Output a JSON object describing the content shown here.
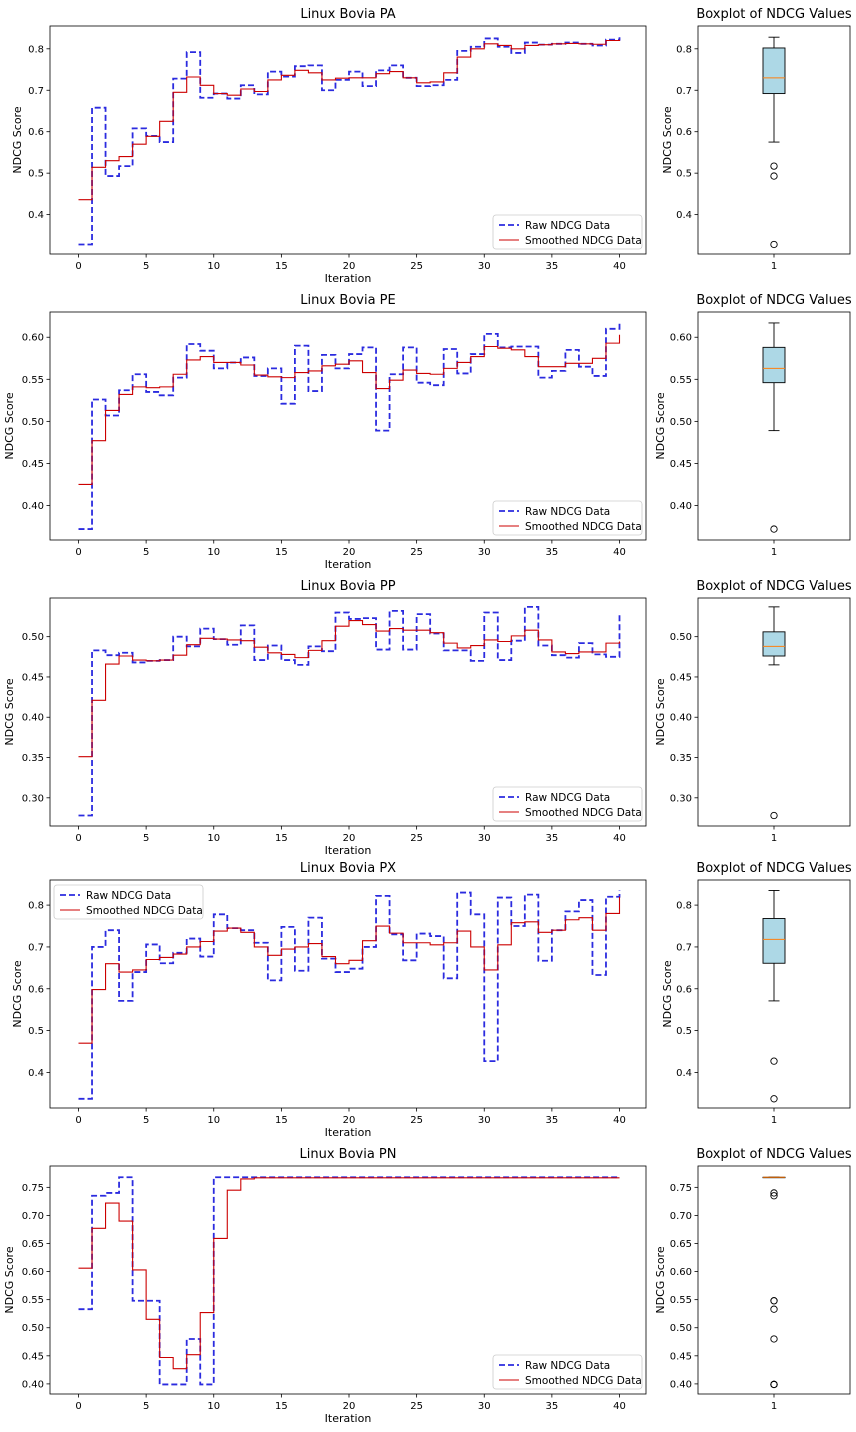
{
  "figure": {
    "legend_raw": "Raw NDCG Data",
    "legend_smooth": "Smoothed NDCG Data",
    "xlabel": "Iteration",
    "ylabel": "NDCG Score",
    "box_title": "Boxplot of NDCG Values",
    "box_xtick": "1"
  },
  "colors": {
    "raw": "#2b2bdf",
    "smooth": "#cc0000",
    "box_fill": "#add8e6",
    "median": "#ff7f0e"
  },
  "chart_data": [
    {
      "type": "line",
      "title": "Linux Bovia PA",
      "xlabel": "Iteration",
      "ylabel": "NDCG Score",
      "xlim": [
        0,
        40
      ],
      "ylim": [
        0.305,
        0.855
      ],
      "yticks": [
        0.4,
        0.5,
        0.6,
        0.7,
        0.8
      ],
      "legend": "lower right",
      "step": "post",
      "series": [
        {
          "name": "Raw NDCG Data",
          "style": "dashed",
          "values": [
            0.328,
            0.658,
            0.493,
            0.517,
            0.608,
            0.59,
            0.575,
            0.728,
            0.792,
            0.682,
            0.692,
            0.68,
            0.712,
            0.69,
            0.745,
            0.733,
            0.758,
            0.76,
            0.7,
            0.725,
            0.745,
            0.71,
            0.748,
            0.76,
            0.73,
            0.71,
            0.712,
            0.725,
            0.795,
            0.805,
            0.825,
            0.805,
            0.79,
            0.815,
            0.81,
            0.812,
            0.815,
            0.812,
            0.808,
            0.822,
            0.828
          ]
        },
        {
          "name": "Smoothed NDCG Data",
          "style": "solid",
          "values": [
            0.436,
            0.514,
            0.53,
            0.54,
            0.57,
            0.589,
            0.625,
            0.695,
            0.732,
            0.712,
            0.692,
            0.688,
            0.703,
            0.697,
            0.725,
            0.736,
            0.748,
            0.742,
            0.725,
            0.729,
            0.73,
            0.73,
            0.74,
            0.745,
            0.73,
            0.718,
            0.72,
            0.742,
            0.78,
            0.8,
            0.812,
            0.808,
            0.8,
            0.808,
            0.81,
            0.812,
            0.813,
            0.812,
            0.811,
            0.82,
            0.822
          ]
        }
      ],
      "box": {
        "min": 0.575,
        "q1": 0.692,
        "median": 0.73,
        "q3": 0.802,
        "max": 0.828,
        "outliers": [
          0.517,
          0.493,
          0.328
        ],
        "ylim": [
          0.305,
          0.855
        ],
        "yticks": [
          0.4,
          0.5,
          0.6,
          0.7,
          0.8
        ]
      }
    },
    {
      "type": "line",
      "title": "Linux Bovia PE",
      "xlabel": "Iteration",
      "ylabel": "NDCG Score",
      "xlim": [
        0,
        40
      ],
      "ylim": [
        0.359,
        0.63
      ],
      "yticks": [
        0.4,
        0.45,
        0.5,
        0.55,
        0.6
      ],
      "legend": "lower right",
      "step": "post",
      "series": [
        {
          "name": "Raw NDCG Data",
          "style": "dashed",
          "values": [
            0.372,
            0.526,
            0.507,
            0.537,
            0.556,
            0.535,
            0.531,
            0.552,
            0.592,
            0.584,
            0.563,
            0.57,
            0.576,
            0.554,
            0.563,
            0.521,
            0.59,
            0.536,
            0.579,
            0.563,
            0.58,
            0.588,
            0.489,
            0.556,
            0.588,
            0.546,
            0.543,
            0.586,
            0.557,
            0.58,
            0.604,
            0.588,
            0.589,
            0.589,
            0.552,
            0.56,
            0.585,
            0.565,
            0.554,
            0.61,
            0.617
          ]
        },
        {
          "name": "Smoothed NDCG Data",
          "style": "solid",
          "values": [
            0.425,
            0.477,
            0.513,
            0.532,
            0.541,
            0.54,
            0.541,
            0.556,
            0.573,
            0.577,
            0.57,
            0.57,
            0.567,
            0.555,
            0.553,
            0.552,
            0.558,
            0.56,
            0.566,
            0.568,
            0.572,
            0.558,
            0.539,
            0.549,
            0.561,
            0.557,
            0.556,
            0.563,
            0.57,
            0.577,
            0.589,
            0.587,
            0.585,
            0.577,
            0.565,
            0.565,
            0.569,
            0.569,
            0.575,
            0.593,
            0.603
          ]
        }
      ],
      "box": {
        "min": 0.489,
        "q1": 0.546,
        "median": 0.563,
        "q3": 0.588,
        "max": 0.617,
        "outliers": [
          0.372
        ],
        "ylim": [
          0.359,
          0.63
        ],
        "yticks": [
          0.4,
          0.45,
          0.5,
          0.55,
          0.6
        ]
      }
    },
    {
      "type": "line",
      "title": "Linux Bovia PP",
      "xlabel": "Iteration",
      "ylabel": "NDCG Score",
      "xlim": [
        0,
        40
      ],
      "ylim": [
        0.265,
        0.548
      ],
      "yticks": [
        0.3,
        0.35,
        0.4,
        0.45,
        0.5
      ],
      "legend": "lower right",
      "step": "post",
      "series": [
        {
          "name": "Raw NDCG Data",
          "style": "dashed",
          "values": [
            0.278,
            0.483,
            0.477,
            0.48,
            0.468,
            0.47,
            0.471,
            0.5,
            0.488,
            0.51,
            0.497,
            0.49,
            0.514,
            0.471,
            0.489,
            0.471,
            0.465,
            0.488,
            0.482,
            0.53,
            0.522,
            0.523,
            0.484,
            0.532,
            0.484,
            0.528,
            0.504,
            0.483,
            0.483,
            0.47,
            0.53,
            0.471,
            0.495,
            0.537,
            0.489,
            0.477,
            0.474,
            0.492,
            0.478,
            0.475,
            0.529
          ]
        },
        {
          "name": "Smoothed NDCG Data",
          "style": "solid",
          "values": [
            0.351,
            0.421,
            0.466,
            0.476,
            0.471,
            0.47,
            0.471,
            0.477,
            0.49,
            0.498,
            0.497,
            0.496,
            0.495,
            0.487,
            0.48,
            0.478,
            0.474,
            0.483,
            0.495,
            0.513,
            0.52,
            0.515,
            0.507,
            0.51,
            0.508,
            0.508,
            0.505,
            0.492,
            0.486,
            0.489,
            0.496,
            0.494,
            0.501,
            0.508,
            0.496,
            0.481,
            0.479,
            0.481,
            0.481,
            0.492,
            0.494
          ]
        }
      ],
      "box": {
        "min": 0.465,
        "q1": 0.476,
        "median": 0.488,
        "q3": 0.506,
        "max": 0.537,
        "outliers": [
          0.278
        ],
        "ylim": [
          0.265,
          0.548
        ],
        "yticks": [
          0.3,
          0.35,
          0.4,
          0.45,
          0.5
        ]
      }
    },
    {
      "type": "line",
      "title": "Linux Bovia PX",
      "xlabel": "Iteration",
      "ylabel": "NDCG Score",
      "xlim": [
        0,
        40
      ],
      "ylim": [
        0.315,
        0.86
      ],
      "yticks": [
        0.4,
        0.5,
        0.6,
        0.7,
        0.8
      ],
      "legend": "upper left",
      "step": "post",
      "series": [
        {
          "name": "Raw NDCG Data",
          "style": "dashed",
          "values": [
            0.337,
            0.7,
            0.74,
            0.571,
            0.64,
            0.706,
            0.661,
            0.686,
            0.72,
            0.677,
            0.778,
            0.745,
            0.74,
            0.71,
            0.62,
            0.748,
            0.643,
            0.77,
            0.672,
            0.64,
            0.648,
            0.7,
            0.822,
            0.73,
            0.668,
            0.732,
            0.726,
            0.625,
            0.83,
            0.778,
            0.427,
            0.818,
            0.75,
            0.825,
            0.667,
            0.74,
            0.785,
            0.812,
            0.633,
            0.82,
            0.835
          ]
        },
        {
          "name": "Smoothed NDCG Data",
          "style": "solid",
          "values": [
            0.47,
            0.598,
            0.66,
            0.64,
            0.645,
            0.67,
            0.675,
            0.683,
            0.7,
            0.713,
            0.738,
            0.745,
            0.735,
            0.7,
            0.68,
            0.695,
            0.7,
            0.708,
            0.677,
            0.66,
            0.668,
            0.715,
            0.75,
            0.733,
            0.71,
            0.71,
            0.705,
            0.71,
            0.738,
            0.7,
            0.645,
            0.705,
            0.758,
            0.76,
            0.735,
            0.74,
            0.765,
            0.77,
            0.74,
            0.78,
            0.82
          ]
        }
      ],
      "box": {
        "min": 0.571,
        "q1": 0.661,
        "median": 0.718,
        "q3": 0.768,
        "max": 0.835,
        "outliers": [
          0.427,
          0.337
        ],
        "ylim": [
          0.315,
          0.86
        ],
        "yticks": [
          0.4,
          0.5,
          0.6,
          0.7,
          0.8
        ]
      }
    },
    {
      "type": "line",
      "title": "Linux Bovia PN",
      "xlabel": "Iteration",
      "ylabel": "NDCG Score",
      "xlim": [
        0,
        40
      ],
      "ylim": [
        0.382,
        0.788
      ],
      "yticks": [
        0.4,
        0.45,
        0.5,
        0.55,
        0.6,
        0.65,
        0.7,
        0.75
      ],
      "legend": "lower right",
      "step": "post",
      "series": [
        {
          "name": "Raw NDCG Data",
          "style": "dashed",
          "values": [
            0.533,
            0.735,
            0.74,
            0.768,
            0.548,
            0.548,
            0.399,
            0.399,
            0.48,
            0.399,
            0.768,
            0.768,
            0.768,
            0.768,
            0.768,
            0.768,
            0.768,
            0.768,
            0.768,
            0.768,
            0.768,
            0.768,
            0.768,
            0.768,
            0.768,
            0.768,
            0.768,
            0.768,
            0.768,
            0.768,
            0.768,
            0.768,
            0.768,
            0.768,
            0.768,
            0.768,
            0.768,
            0.768,
            0.768,
            0.768,
            0.768
          ]
        },
        {
          "name": "Smoothed NDCG Data",
          "style": "solid",
          "values": [
            0.606,
            0.677,
            0.722,
            0.69,
            0.603,
            0.515,
            0.447,
            0.427,
            0.452,
            0.527,
            0.659,
            0.745,
            0.765,
            0.767,
            0.767,
            0.767,
            0.767,
            0.767,
            0.767,
            0.767,
            0.767,
            0.767,
            0.767,
            0.767,
            0.767,
            0.767,
            0.767,
            0.767,
            0.767,
            0.767,
            0.767,
            0.767,
            0.767,
            0.767,
            0.767,
            0.767,
            0.767,
            0.767,
            0.767,
            0.767,
            0.767
          ]
        }
      ],
      "box": {
        "min": 0.768,
        "q1": 0.768,
        "median": 0.768,
        "q3": 0.768,
        "max": 0.768,
        "outliers": [
          0.74,
          0.735,
          0.548,
          0.548,
          0.533,
          0.48,
          0.399,
          0.399,
          0.399
        ],
        "ylim": [
          0.382,
          0.788
        ],
        "yticks": [
          0.4,
          0.45,
          0.5,
          0.55,
          0.6,
          0.65,
          0.7,
          0.75
        ]
      }
    }
  ]
}
